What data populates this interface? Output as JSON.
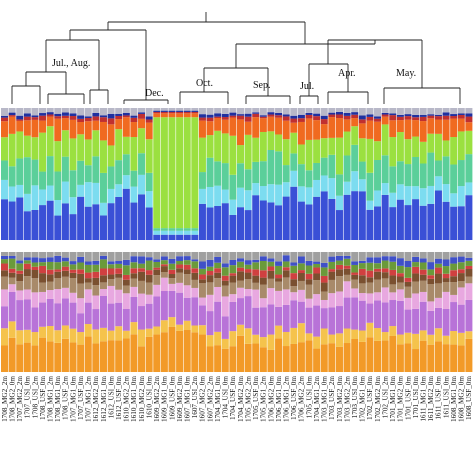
{
  "chart_data": [
    {
      "type": "dendrogram",
      "title": "",
      "cluster_labels": [
        "Jul., Aug.",
        "Dec.",
        "Oct.",
        "Sep.",
        "Jul.",
        "Apr.",
        "May."
      ]
    },
    {
      "type": "stacked_bar",
      "panel": "top",
      "title": "",
      "ylim": [
        0,
        1
      ],
      "n_samples": 62,
      "palette": {
        "c1": "#3a50d6",
        "c2": "#7cdcf0",
        "c3": "#9be040",
        "c4": "#5bcf9a",
        "c5": "#f06a20",
        "c6": "#c03030",
        "c7": "#2030a0",
        "c8": "#b8b8c8"
      },
      "series_note": "fractions from bottom to top (c1..c8), per sample",
      "samples_approx": "62 stacked bars (relative abundance); Dec. group dominated by c3"
    },
    {
      "type": "stacked_bar",
      "panel": "bottom",
      "title": "",
      "ylim": [
        0,
        1
      ],
      "n_samples": 62,
      "palette": {
        "d1": "#f29a28",
        "d2": "#f5c34c",
        "d3": "#b873d8",
        "d4": "#e8a8e0",
        "d5": "#a88a6a",
        "d6": "#7a5030",
        "d7": "#d04040",
        "d8": "#6a9a3a",
        "d9": "#4050c8",
        "d10": "#a0a0a0"
      }
    },
    {
      "type": "tick_labels",
      "x_tick_labels": [
        "1708_MG2_2m",
        "1708_MG2_0m",
        "1707_MG2_2m",
        "1707_USI_0m",
        "1708_USI_2m",
        "1708_USF_0m",
        "1708_MG1_2m",
        "1708_MG1_0m",
        "1708_USF_2m",
        "1707_MG1_0m",
        "1707_USF_0m",
        "1707_MG1_2m",
        "1612_MG2_0m",
        "1612_MG1_0m",
        "1612_USI_0m",
        "1612_USF_0m",
        "1610_MG2_2m",
        "1610_MG1_0m",
        "1610_MG2_0m",
        "1610_USI_0m",
        "1609_MG2_2m",
        "1609_MG1_0m",
        "1609_USF_0m",
        "1609_MG2_0m",
        "1607_MG1_0m",
        "1607_USI_2m",
        "1607_MG2_0m",
        "1607_MG2_2m",
        "1704_MG1_0m",
        "1704_USI_0m",
        "1704_USF_0m",
        "1704_MG2_0m",
        "1705_MG2_2m",
        "1705_USF_0m",
        "1705_MG1_2m",
        "1706_MG2_0m",
        "1706_MG1_0m",
        "1706_MG1_2m",
        "1706_USF_0m",
        "1706_MG2_2m",
        "1705_USI_0m",
        "1704_MG1_2m",
        "1703_MG1_0m",
        "1703_USF_2m",
        "1703_MG2_0m",
        "1703_MG2_2m",
        "1703_USI_0m",
        "1702_MG1_0m",
        "1702_USF_0m",
        "1702_MG2_0m",
        "1702_USI_2m",
        "1701_MG1_0m",
        "1701_MG2_0m",
        "1701_USF_0m",
        "1701_USI_0m",
        "1611_MG1_0m",
        "1611_MG2_0m",
        "1611_USF_0m",
        "1611_USI_0m",
        "1608_MG1_0m",
        "1608_MG2_0m",
        "1608_USF_0m"
      ]
    }
  ]
}
